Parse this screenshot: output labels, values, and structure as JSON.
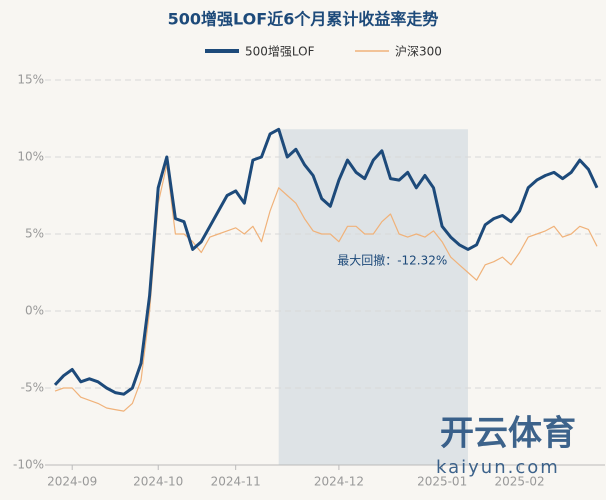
{
  "chart_data": {
    "type": "line",
    "title": "500增强LOF近6个月累计收益率走势",
    "categories": [
      null,
      null,
      "2024-09",
      null,
      null,
      null,
      null,
      null,
      null,
      null,
      null,
      null,
      "2024-10",
      null,
      null,
      null,
      null,
      null,
      null,
      null,
      null,
      "2024-11",
      null,
      null,
      null,
      null,
      null,
      null,
      null,
      null,
      null,
      null,
      null,
      "2024-12",
      null,
      null,
      null,
      null,
      null,
      null,
      null,
      null,
      null,
      null,
      null,
      "2025-01",
      null,
      null,
      null,
      null,
      null,
      null,
      null,
      null,
      "2025-02",
      null,
      null,
      null,
      null,
      null,
      null,
      null,
      null,
      null
    ],
    "series": [
      {
        "name": "500增强LOF",
        "color": "#1d4a7a",
        "values": [
          -4.8,
          -4.2,
          -3.8,
          -4.6,
          -4.4,
          -4.6,
          -5.0,
          -5.3,
          -5.4,
          -5.0,
          -3.4,
          1,
          8,
          10,
          6,
          5.8,
          4,
          4.5,
          5.5,
          6.5,
          7.5,
          7.8,
          7,
          9.8,
          10,
          11.5,
          11.8,
          10,
          10.5,
          9.5,
          8.8,
          7.3,
          6.8,
          8.5,
          9.8,
          9.0,
          8.6,
          9.8,
          10.4,
          8.6,
          8.5,
          9.0,
          8.0,
          8.8,
          8.0,
          5.5,
          4.8,
          4.3,
          4.0,
          4.3,
          5.6,
          6.0,
          6.2,
          5.8,
          6.5,
          8.0,
          8.5,
          8.8,
          9.0,
          8.6,
          9.0,
          9.8,
          9.2,
          8.0
        ]
      },
      {
        "name": "沪深300",
        "color": "#f0b27a",
        "values": [
          -5.2,
          -5.0,
          -5.0,
          -5.6,
          -5.8,
          -6.0,
          -6.3,
          -6.4,
          -6.5,
          -6.0,
          -4.5,
          0,
          7,
          9.5,
          5,
          5,
          4.5,
          3.8,
          4.8,
          5,
          5.2,
          5.4,
          5,
          5.5,
          4.5,
          6.5,
          8.0,
          7.5,
          7.0,
          6.0,
          5.2,
          5.0,
          5.0,
          4.5,
          5.5,
          5.5,
          5.0,
          5.0,
          5.8,
          6.3,
          5.0,
          4.8,
          5.0,
          4.8,
          5.2,
          4.5,
          3.5,
          3.0,
          2.5,
          2.0,
          3.0,
          3.2,
          3.5,
          3.0,
          3.8,
          4.8,
          5.0,
          5.2,
          5.5,
          4.8,
          5.0,
          5.5,
          5.3,
          4.2
        ]
      }
    ],
    "ylim": [
      -10,
      15
    ],
    "yticks": [
      {
        "value": -10,
        "label": "-10%"
      },
      {
        "value": -5,
        "label": "-5%"
      },
      {
        "value": 0,
        "label": "0%"
      },
      {
        "value": 5,
        "label": "5%"
      },
      {
        "value": 10,
        "label": "10%"
      },
      {
        "value": 15,
        "label": "15%"
      }
    ],
    "grid": true,
    "legend": "top",
    "annotation": {
      "label": "最大回撤：-12.32%",
      "value": -12.32
    },
    "watermark": [
      "开云体育",
      "kaiyun.com"
    ]
  }
}
